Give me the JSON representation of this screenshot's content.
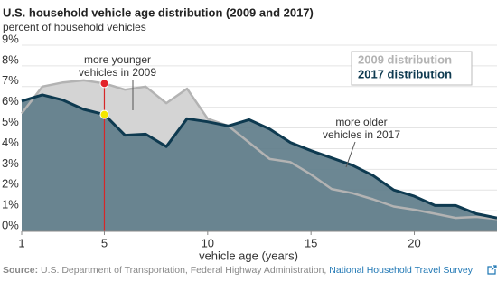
{
  "chart_data": {
    "type": "area",
    "title": "U.S. household vehicle age distribution (2009 and 2017)",
    "subtitle": "percent of household vehicles",
    "x_label": "vehicle age (years)",
    "x": [
      1,
      2,
      3,
      4,
      5,
      6,
      7,
      8,
      9,
      10,
      11,
      12,
      13,
      14,
      15,
      16,
      17,
      18,
      19,
      20,
      21,
      22,
      23,
      24
    ],
    "series": [
      {
        "name": "2009 distribution",
        "color": "#b3b3b3",
        "fill_color": "#d4d4d4",
        "values": [
          5.7,
          7.0,
          7.2,
          7.3,
          7.15,
          6.85,
          7.0,
          6.2,
          6.9,
          5.45,
          5.1,
          4.3,
          3.5,
          3.35,
          2.75,
          2.05,
          1.85,
          1.55,
          1.2,
          1.05,
          0.85,
          0.65,
          0.7,
          0.6
        ]
      },
      {
        "name": "2017 distribution",
        "color": "#0e3a50",
        "fill_color": "#5f7d8a",
        "values": [
          6.3,
          6.6,
          6.35,
          5.9,
          5.65,
          4.65,
          4.7,
          4.1,
          5.45,
          5.3,
          5.1,
          5.4,
          4.95,
          4.3,
          3.9,
          3.55,
          3.2,
          2.7,
          2.0,
          1.7,
          1.25,
          1.25,
          0.85,
          0.65
        ]
      }
    ],
    "xlim": [
      1,
      24
    ],
    "xticks": [
      1,
      5,
      10,
      15,
      20
    ],
    "ylim": [
      0,
      9
    ],
    "yticks": [
      {
        "value": 0,
        "label": "0%"
      },
      {
        "value": 1,
        "label": "1%"
      },
      {
        "value": 2,
        "label": "2%"
      },
      {
        "value": 3,
        "label": "3%"
      },
      {
        "value": 4,
        "label": "4%"
      },
      {
        "value": 5,
        "label": "5%"
      },
      {
        "value": 6,
        "label": "6%"
      },
      {
        "value": 7,
        "label": "7%"
      },
      {
        "value": 8,
        "label": "8%"
      },
      {
        "value": 9,
        "label": "9%"
      }
    ],
    "grid": true,
    "legend": "upper right",
    "highlight_x": 5,
    "annotations": [
      {
        "lines": [
          "more younger",
          "vehicles in 2009"
        ]
      },
      {
        "lines": [
          "more older",
          "vehicles in 2017"
        ]
      }
    ],
    "source": {
      "label": "Source:",
      "text": "U.S. Department of Transportation, Federal Highway Administration,",
      "link": "National Household Travel Survey"
    }
  }
}
